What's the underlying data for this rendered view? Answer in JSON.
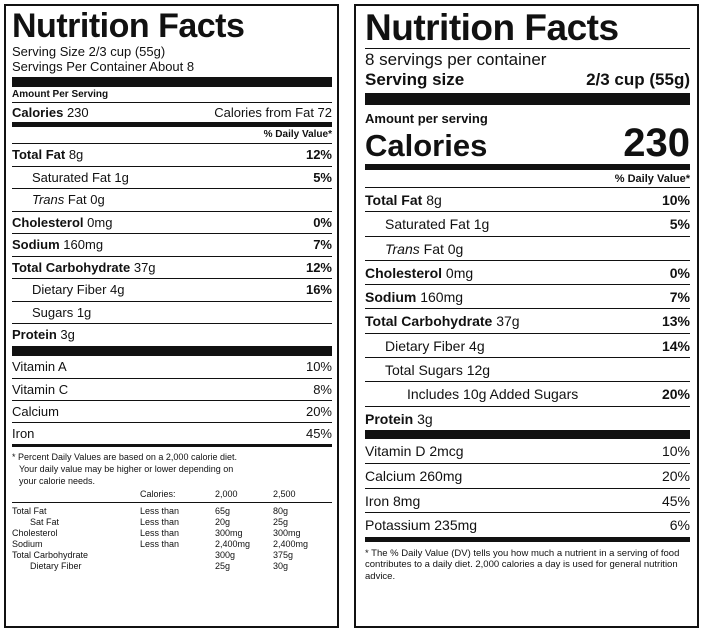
{
  "old_label": {
    "title": "Nutrition Facts",
    "serving_size": "Serving Size 2/3 cup (55g)",
    "servings_per_container": "Servings Per Container About 8",
    "amount_per_serving": "Amount Per Serving",
    "calories_label": "Calories",
    "calories_value": "230",
    "calories_from_fat": "Calories from Fat 72",
    "dv_header": "% Daily Value*",
    "nutrients": [
      {
        "name": "Total Fat",
        "amount": "8g",
        "dv": "12%"
      },
      {
        "name": "Saturated Fat",
        "amount": "1g",
        "dv": "5%"
      },
      {
        "name": "Trans",
        "amount": "Fat 0g",
        "dv": ""
      },
      {
        "name": "Cholesterol",
        "amount": "0mg",
        "dv": "0%"
      },
      {
        "name": "Sodium",
        "amount": "160mg",
        "dv": "7%"
      },
      {
        "name": "Total Carbohydrate",
        "amount": "37g",
        "dv": "12%"
      },
      {
        "name": "Dietary Fiber",
        "amount": "4g",
        "dv": "16%"
      },
      {
        "name": "Sugars",
        "amount": "1g",
        "dv": ""
      },
      {
        "name": "Protein",
        "amount": "3g",
        "dv": ""
      }
    ],
    "vitamins": [
      {
        "name": "Vitamin A",
        "dv": "10%"
      },
      {
        "name": "Vitamin C",
        "dv": "8%"
      },
      {
        "name": "Calcium",
        "dv": "20%"
      },
      {
        "name": "Iron",
        "dv": "45%"
      }
    ],
    "footnote": [
      "* Percent Daily Values are based on a 2,000 calorie diet.",
      "Your daily value may be higher or lower depending on",
      "your calorie needs."
    ],
    "ref_table": {
      "header": [
        "",
        "Calories:",
        "2,000",
        "2,500"
      ],
      "rows": [
        [
          "Total Fat",
          "Less than",
          "65g",
          "80g"
        ],
        [
          "Sat Fat",
          "Less than",
          "20g",
          "25g"
        ],
        [
          "Cholesterol",
          "Less than",
          "300mg",
          "300mg"
        ],
        [
          "Sodium",
          "Less than",
          "2,400mg",
          "2,400mg"
        ],
        [
          "Total Carbohydrate",
          "",
          "300g",
          "375g"
        ],
        [
          "Dietary Fiber",
          "",
          "25g",
          "30g"
        ]
      ]
    }
  },
  "new_label": {
    "title": "Nutrition Facts",
    "servings_per_container": "8 servings per container",
    "serving_size_label": "Serving size",
    "serving_size_value": "2/3 cup (55g)",
    "amount_per_serving": "Amount per serving",
    "calories_label": "Calories",
    "calories_value": "230",
    "dv_header": "% Daily Value*",
    "nutrients": [
      {
        "name": "Total Fat",
        "amount": "8g",
        "dv": "10%"
      },
      {
        "name": "Saturated Fat",
        "amount": "1g",
        "dv": "5%"
      },
      {
        "name": "Trans",
        "amount": "Fat 0g",
        "dv": ""
      },
      {
        "name": "Cholesterol",
        "amount": "0mg",
        "dv": "0%"
      },
      {
        "name": "Sodium",
        "amount": "160mg",
        "dv": "7%"
      },
      {
        "name": "Total Carbohydrate",
        "amount": "37g",
        "dv": "13%"
      },
      {
        "name": "Dietary Fiber",
        "amount": "4g",
        "dv": "14%"
      },
      {
        "name": "Total Sugars",
        "amount": "12g",
        "dv": ""
      },
      {
        "name": "Includes 10g Added Sugars",
        "amount": "",
        "dv": "20%"
      },
      {
        "name": "Protein",
        "amount": "3g",
        "dv": ""
      }
    ],
    "vitamins": [
      {
        "name": "Vitamin D 2mcg",
        "dv": "10%"
      },
      {
        "name": "Calcium 260mg",
        "dv": "20%"
      },
      {
        "name": "Iron 8mg",
        "dv": "45%"
      },
      {
        "name": "Potassium 235mg",
        "dv": "6%"
      }
    ],
    "footnote": "* The % Daily Value (DV) tells you how much a nutrient in a serving of food contributes to a daily diet. 2,000 calories a day is used for general nutrition advice."
  }
}
